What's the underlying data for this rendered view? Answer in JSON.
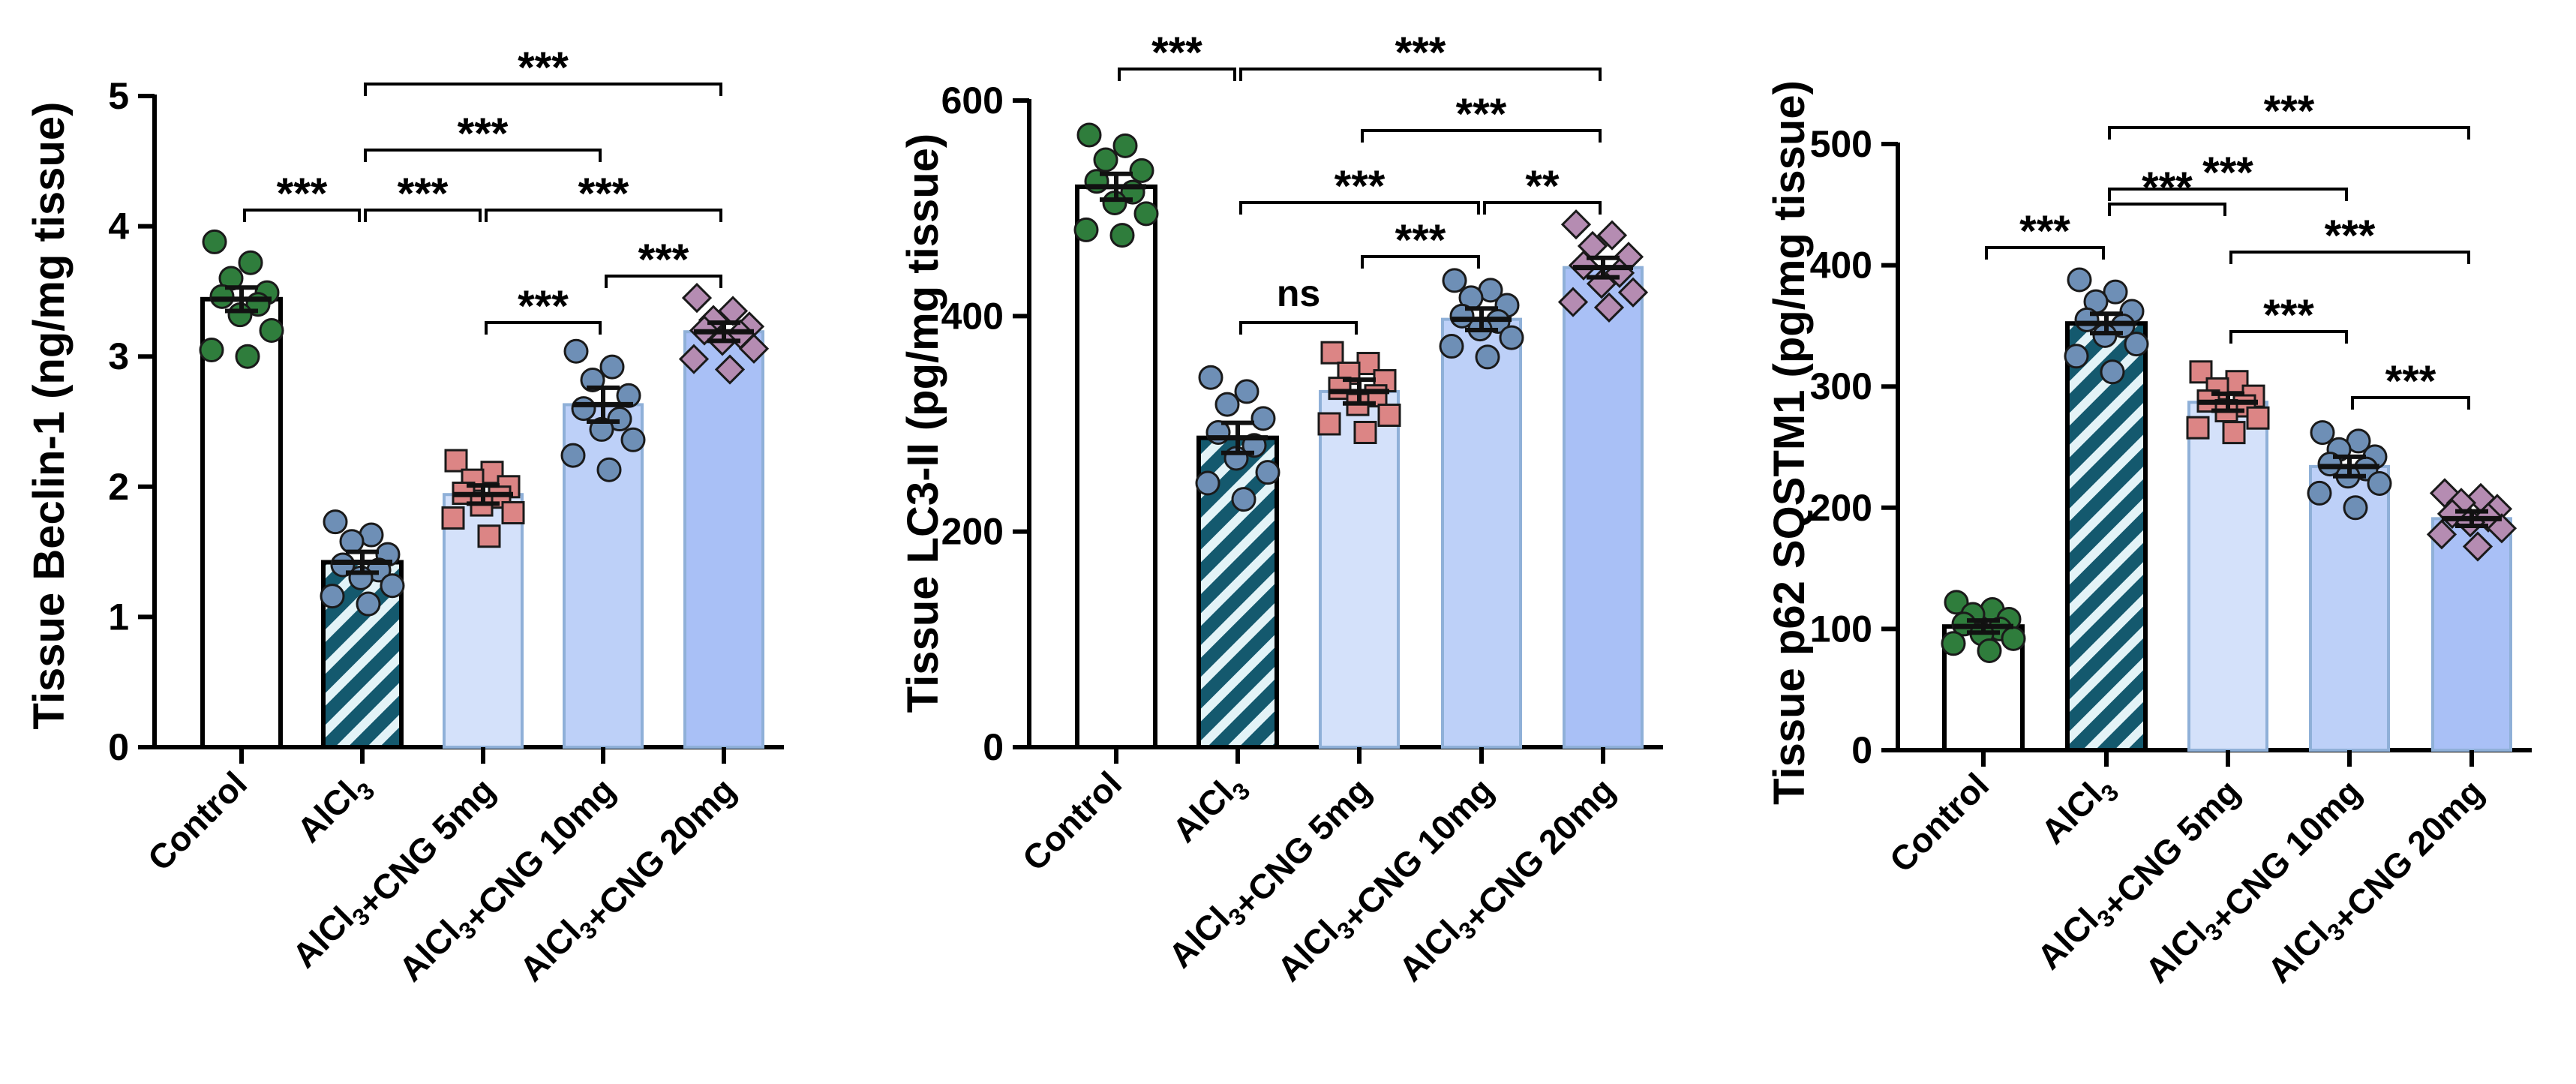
{
  "chart_data": [
    {
      "type": "bar",
      "ylabel": "Tissue Beclin-1 (ng/mg tissue)",
      "ylim": [
        0,
        5
      ],
      "yticks": [
        "0",
        "1",
        "2",
        "3",
        "4",
        "5"
      ],
      "categories": [
        "Control",
        "AlCl3",
        "AlCl3+CNG 5mg",
        "AlCl3+CNG 10mg",
        "AlCl3+CNG 20mg"
      ],
      "values": [
        3.44,
        1.42,
        1.94,
        2.63,
        3.19
      ],
      "sem": [
        0.09,
        0.08,
        0.07,
        0.13,
        0.07
      ],
      "points": [
        [
          3.88,
          3.72,
          3.6,
          3.49,
          3.46,
          3.4,
          3.32,
          3.2,
          3.05,
          3.0
        ],
        [
          1.73,
          1.63,
          1.58,
          1.48,
          1.4,
          1.36,
          1.3,
          1.24,
          1.16,
          1.1
        ],
        [
          2.2,
          2.11,
          2.05,
          2.0,
          1.95,
          1.92,
          1.86,
          1.8,
          1.76,
          1.62
        ],
        [
          3.04,
          2.92,
          2.82,
          2.7,
          2.6,
          2.52,
          2.44,
          2.36,
          2.24,
          2.13
        ],
        [
          3.45,
          3.35,
          3.28,
          3.23,
          3.2,
          3.17,
          3.12,
          3.06,
          2.98,
          2.9
        ]
      ],
      "comparisons": [
        {
          "from": 0,
          "to": 1,
          "label": "***"
        },
        {
          "from": 1,
          "to": 2,
          "label": "***"
        },
        {
          "from": 1,
          "to": 3,
          "label": "***"
        },
        {
          "from": 1,
          "to": 4,
          "label": "***"
        },
        {
          "from": 2,
          "to": 4,
          "label": "***"
        },
        {
          "from": 2,
          "to": 3,
          "label": "***"
        },
        {
          "from": 3,
          "to": 4,
          "label": "***"
        }
      ]
    },
    {
      "type": "bar",
      "ylabel": "Tissue LC3-II (pg/mg tissue)",
      "ylim": [
        0,
        600
      ],
      "yticks": [
        "0",
        "200",
        "400",
        "600"
      ],
      "categories": [
        "Control",
        "AlCl3",
        "AlCl3+CNG 5mg",
        "AlCl3+CNG 10mg",
        "AlCl3+CNG 20mg"
      ],
      "values": [
        520,
        287,
        330,
        397,
        445
      ],
      "sem": [
        12,
        14,
        11,
        10,
        9
      ],
      "points": [
        [
          568,
          558,
          545,
          535,
          525,
          515,
          505,
          495,
          480,
          475
        ],
        [
          343,
          330,
          318,
          305,
          292,
          280,
          268,
          255,
          245,
          230
        ],
        [
          366,
          356,
          347,
          340,
          333,
          326,
          318,
          308,
          300,
          292
        ],
        [
          433,
          424,
          417,
          410,
          400,
          395,
          388,
          380,
          372,
          362
        ],
        [
          485,
          475,
          465,
          455,
          447,
          440,
          430,
          422,
          413,
          408
        ]
      ],
      "comparisons": [
        {
          "from": 0,
          "to": 1,
          "label": "***"
        },
        {
          "from": 1,
          "to": 4,
          "label": "***"
        },
        {
          "from": 2,
          "to": 4,
          "label": "***"
        },
        {
          "from": 1,
          "to": 3,
          "label": "***"
        },
        {
          "from": 3,
          "to": 4,
          "label": "**"
        },
        {
          "from": 2,
          "to": 3,
          "label": "***"
        },
        {
          "from": 1,
          "to": 2,
          "label": "ns"
        }
      ]
    },
    {
      "type": "bar",
      "ylabel": "Tissue p62 SQSTM1 (pg/mg tissue)",
      "ylim": [
        0,
        500
      ],
      "yticks": [
        "0",
        "100",
        "200",
        "300",
        "400",
        "500"
      ],
      "categories": [
        "Control",
        "AlCl3",
        "AlCl3+CNG 5mg",
        "AlCl3+CNG 10mg",
        "AlCl3+CNG 20mg"
      ],
      "values": [
        102,
        352,
        287,
        234,
        191
      ],
      "sem": [
        5,
        8,
        7,
        8,
        6
      ],
      "points": [
        [
          122,
          116,
          112,
          108,
          104,
          100,
          96,
          92,
          88,
          82
        ],
        [
          388,
          378,
          370,
          362,
          355,
          350,
          342,
          335,
          325,
          312
        ],
        [
          312,
          304,
          298,
          292,
          288,
          284,
          280,
          274,
          266,
          262
        ],
        [
          262,
          255,
          248,
          242,
          236,
          232,
          226,
          220,
          212,
          200
        ],
        [
          212,
          208,
          204,
          199,
          195,
          192,
          188,
          183,
          178,
          168
        ]
      ],
      "comparisons": [
        {
          "from": 1,
          "to": 4,
          "label": "***"
        },
        {
          "from": 1,
          "to": 3,
          "label": "***"
        },
        {
          "from": 0,
          "to": 1,
          "label": "***"
        },
        {
          "from": 1,
          "to": 2,
          "label": "***"
        },
        {
          "from": 2,
          "to": 4,
          "label": "***"
        },
        {
          "from": 2,
          "to": 3,
          "label": "***"
        },
        {
          "from": 3,
          "to": 4,
          "label": "***"
        }
      ]
    }
  ],
  "style": {
    "group_fill": [
      "#ffffff",
      "hatch",
      "#d4e1fa",
      "#bdd0f8",
      "#a9c0f6"
    ],
    "group_stroke": [
      "#000000",
      "#000000",
      "#8fb0d8",
      "#8fb0d8",
      "#8fb0d8"
    ],
    "hatch_dark": "#14596e",
    "hatch_light": "#e3f3f7",
    "point_fill": [
      "#2f7d3c",
      "#6e8fb6",
      "#dc8585",
      "#6e8fb6",
      "#b58cb2"
    ],
    "point_shape": [
      "circle",
      "circle",
      "square",
      "circle",
      "diamond"
    ]
  }
}
